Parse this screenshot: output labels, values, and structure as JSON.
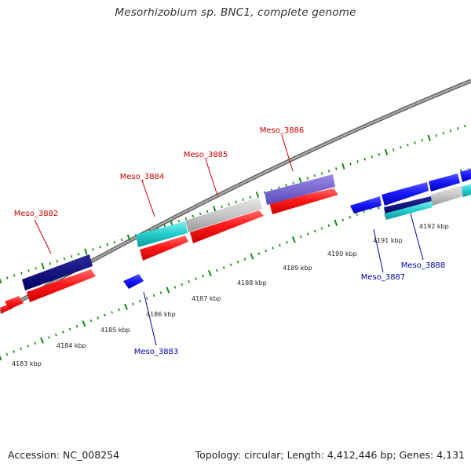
{
  "title": "Mesorhizobium sp. BNC1, complete genome",
  "footer": {
    "accession": "Accession: NC_008254",
    "summary": "Topology: circular; Length: 4,412,446 bp; Genes: 4,131"
  },
  "colors": {
    "forward_label": "#cc0000",
    "reverse_label": "#0000aa",
    "cds": "#ff1a1a",
    "tick": "#118811",
    "backbone": "#8a8a8a"
  },
  "kbp_labels": [
    "4183 kbp",
    "4184 kbp",
    "4185 kbp",
    "4186 kbp",
    "4187 kbp",
    "4188 kbp",
    "4189 kbp",
    "4190 kbp",
    "4191 kbp",
    "4192 kbp"
  ],
  "genes": {
    "forward": [
      "Meso_3882",
      "Meso_3884",
      "Meso_3885",
      "Meso_3886"
    ],
    "reverse": [
      "Meso_3883",
      "Meso_3887",
      "Meso_3888"
    ]
  }
}
